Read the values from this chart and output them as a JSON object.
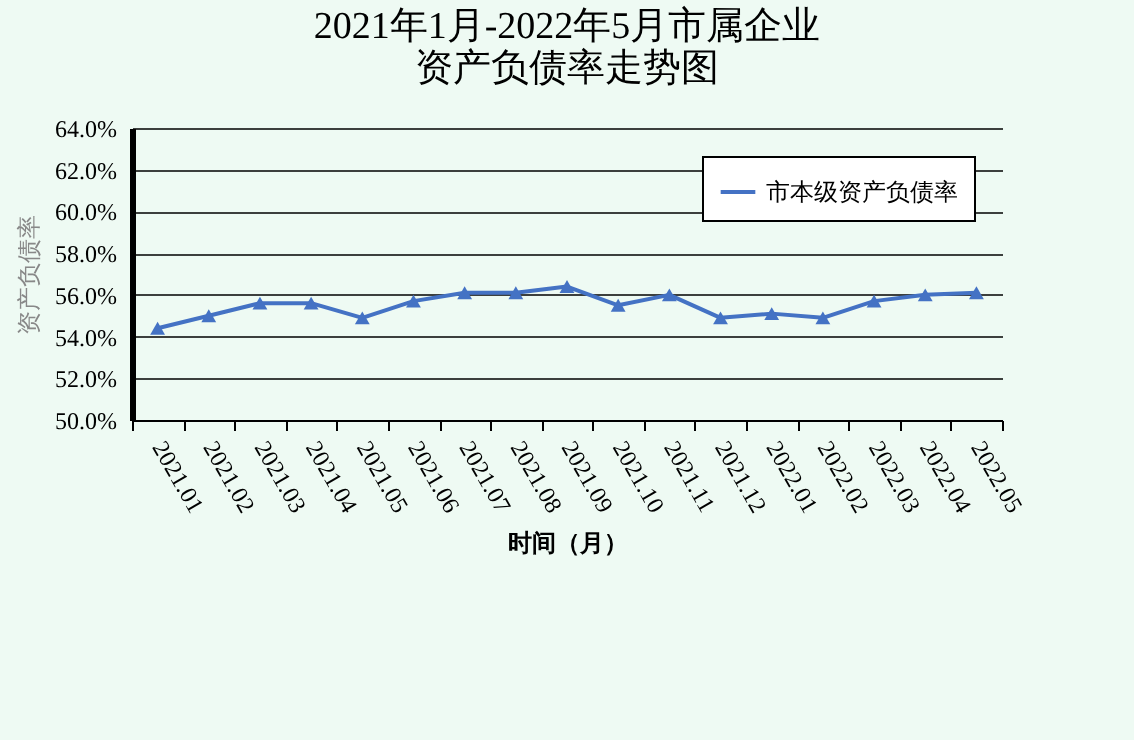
{
  "chart_data": {
    "type": "line",
    "title": "2021年1月-2022年5月市属企业资产负债率走势图",
    "xlabel": "时间（月）",
    "ylabel": "资产负债率",
    "categories": [
      "2021.01",
      "2021.02",
      "2021.03",
      "2021.04",
      "2021.05",
      "2021.06",
      "2021.07",
      "2021.08",
      "2021.09",
      "2021.10",
      "2021.11",
      "2021.12",
      "2022.01",
      "2022.02",
      "2022.03",
      "2022.04",
      "2022.05"
    ],
    "series": [
      {
        "name": "市本级资产负债率",
        "color": "#4472c4",
        "values": [
          54.4,
          55.0,
          55.6,
          55.6,
          54.9,
          55.7,
          56.1,
          56.1,
          56.4,
          55.5,
          56.0,
          54.9,
          55.1,
          54.9,
          55.7,
          56.0,
          56.1
        ]
      }
    ],
    "ylim": [
      50,
      64
    ],
    "yticks": [
      {
        "value": 50,
        "label": "50.0%"
      },
      {
        "value": 52,
        "label": "52.0%"
      },
      {
        "value": 54,
        "label": "54.0%"
      },
      {
        "value": 56,
        "label": "56.0%"
      },
      {
        "value": 58,
        "label": "58.0%"
      },
      {
        "value": 60,
        "label": "60.0%"
      },
      {
        "value": 62,
        "label": "62.0%"
      },
      {
        "value": 64,
        "label": "64.0%"
      }
    ],
    "grid": "y",
    "legend": "top right",
    "marker": "triangle",
    "line_style": "solid"
  }
}
